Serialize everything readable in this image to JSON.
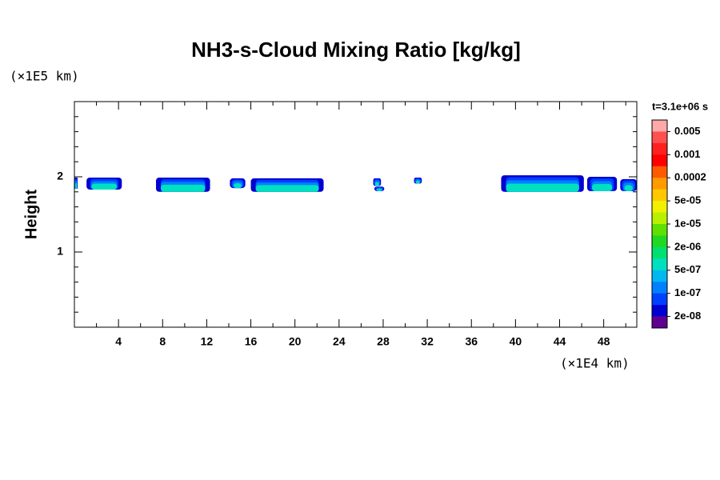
{
  "chart_data": {
    "type": "contour",
    "title": "NH3-s-Cloud Mixing Ratio [kg/kg]",
    "ylabel": "Height",
    "yunit": "(×1E5 km)",
    "xunit": "(×1E4 km)",
    "xlim": [
      0,
      51
    ],
    "ylim": [
      0,
      3
    ],
    "xticks": [
      4,
      8,
      12,
      16,
      20,
      24,
      28,
      32,
      36,
      40,
      44,
      48
    ],
    "yticks": [
      1,
      2
    ],
    "xminorticks": [
      2,
      6,
      10,
      14,
      18,
      22,
      26,
      30,
      34,
      38,
      42,
      46,
      50
    ],
    "yminorticks": [
      0.2,
      0.4,
      0.6,
      0.8,
      1.2,
      1.4,
      1.6,
      1.8,
      2.2,
      2.4,
      2.6,
      2.8
    ],
    "colorbar_title": "t=3.1e+06 s",
    "colorbar_colors": [
      "#ffa8a8",
      "#ff5050",
      "#ff2020",
      "#ff0000",
      "#ff5a00",
      "#ff9a00",
      "#ffc800",
      "#f0f000",
      "#b8f000",
      "#60e000",
      "#20d820",
      "#00e070",
      "#00e0c0",
      "#00b8f0",
      "#0080ff",
      "#0040ff",
      "#0000d0",
      "#600090"
    ],
    "colorbar_levels": [
      0.005,
      0.001,
      0.0002,
      {
        "value": 5e-05,
        "label": "5e-05"
      },
      {
        "value": 1e-05,
        "label": "1e-05"
      },
      {
        "value": 2e-06,
        "label": "2e-06"
      },
      {
        "value": 5e-07,
        "label": "5e-07"
      },
      {
        "value": 1e-07,
        "label": "1e-07"
      },
      {
        "value": 2e-08,
        "label": "2e-08"
      }
    ],
    "patches": [
      {
        "x": [
          0,
          0.3
        ],
        "y": [
          1.84,
          1.99
        ]
      },
      {
        "x": [
          1.1,
          4.3
        ],
        "y": [
          1.83,
          1.99
        ]
      },
      {
        "x": [
          7.4,
          12.3
        ],
        "y": [
          1.8,
          1.99
        ]
      },
      {
        "x": [
          14.1,
          15.5
        ],
        "y": [
          1.85,
          1.98
        ]
      },
      {
        "x": [
          16.0,
          22.6
        ],
        "y": [
          1.8,
          1.98
        ]
      },
      {
        "x": [
          27.1,
          27.8
        ],
        "y": [
          1.88,
          1.98
        ]
      },
      {
        "x": [
          27.2,
          28.1
        ],
        "y": [
          1.81,
          1.87
        ]
      },
      {
        "x": [
          30.8,
          31.5
        ],
        "y": [
          1.91,
          1.99
        ]
      },
      {
        "x": [
          38.7,
          46.2
        ],
        "y": [
          1.8,
          2.02
        ]
      },
      {
        "x": [
          46.5,
          49.2
        ],
        "y": [
          1.81,
          2.0
        ]
      },
      {
        "x": [
          49.5,
          51
        ],
        "y": [
          1.81,
          1.97
        ]
      }
    ]
  }
}
